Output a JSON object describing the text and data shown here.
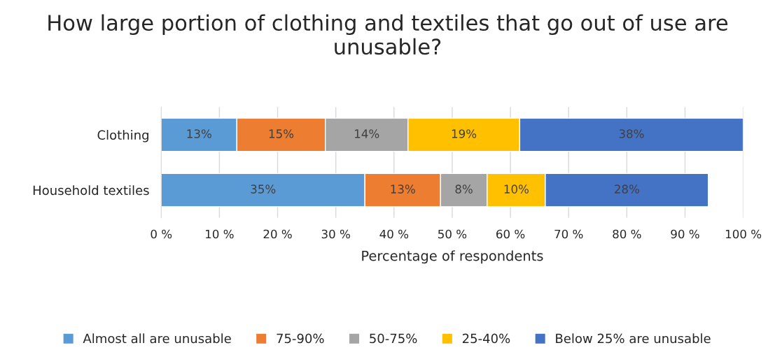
{
  "chart_data": {
    "type": "bar",
    "orientation": "horizontal",
    "stacked": true,
    "title": "How large portion of clothing and textiles that go out of use are unusable?",
    "xlabel": "Percentage of respondents",
    "categories": [
      "Clothing",
      "Household textiles"
    ],
    "series": [
      {
        "name": "Almost all are unusable",
        "color": "#5b9bd5",
        "values": [
          13.0,
          35
        ],
        "value_labels": [
          "13%",
          "35%"
        ]
      },
      {
        "name": "75-90%",
        "color": "#ed7d31",
        "values": [
          15.2,
          13
        ],
        "value_labels": [
          "15%",
          "13%"
        ]
      },
      {
        "name": "50-75%",
        "color": "#a5a5a5",
        "values": [
          14.2,
          8
        ],
        "value_labels": [
          "14%",
          "8%"
        ]
      },
      {
        "name": "25-40%",
        "color": "#ffc000",
        "values": [
          19.2,
          10
        ],
        "value_labels": [
          "19%",
          "10%"
        ]
      },
      {
        "name": "Below 25% are unusable",
        "color": "#4472c4",
        "values": [
          38.4,
          28
        ],
        "value_labels": [
          "38%",
          "28%"
        ]
      }
    ],
    "xlim": [
      0,
      100
    ],
    "xticks": [
      {
        "value": 0,
        "label": "0 %"
      },
      {
        "value": 10,
        "label": "10 %"
      },
      {
        "value": 20,
        "label": "20 %"
      },
      {
        "value": 30,
        "label": "30 %"
      },
      {
        "value": 40,
        "label": "40 %"
      },
      {
        "value": 50,
        "label": "50 %"
      },
      {
        "value": 60,
        "label": "60 %"
      },
      {
        "value": 70,
        "label": "70 %"
      },
      {
        "value": 80,
        "label": "80 %"
      },
      {
        "value": 90,
        "label": "90 %"
      },
      {
        "value": 100,
        "label": "100 %"
      }
    ],
    "grid": "x",
    "legend": "bottom"
  }
}
